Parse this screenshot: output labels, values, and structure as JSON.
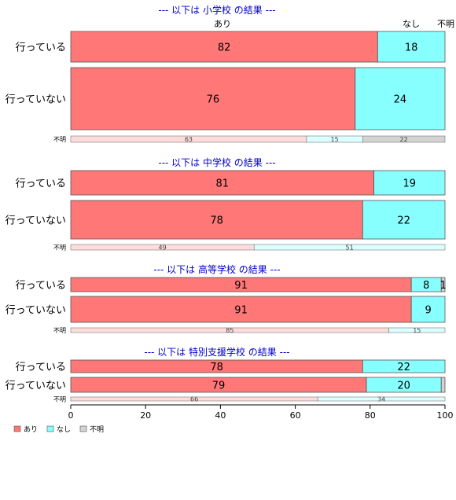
{
  "chart_data": {
    "type": "bar",
    "orientation": "horizontal",
    "stacked": true,
    "xlim": [
      0,
      100
    ],
    "x_ticks": [
      "0",
      "20",
      "40",
      "60",
      "80",
      "100"
    ],
    "grid": false,
    "header_labels": [
      "あり",
      "なし",
      "不明"
    ],
    "legend": {
      "placement": "bottom-left",
      "items": [
        {
          "label": "あり",
          "color": "#FF7777"
        },
        {
          "label": "なし",
          "color": "#88FFFF"
        },
        {
          "label": "不明",
          "color": "#D3D3D3"
        }
      ]
    },
    "colors": {
      "main": [
        "#FF7777",
        "#88FFFF",
        "#D3D3D3"
      ],
      "thin": [
        "#FFDCDC",
        "#DCFFFF",
        "#D3D3D3"
      ],
      "title": "#0000CC"
    },
    "panels": [
      {
        "title": "--- 以下は 小学校 の結果 ---",
        "rows": [
          {
            "label": "行っている",
            "values": [
              82,
              18,
              0
            ],
            "shown": [
              "82",
              "18",
              ""
            ]
          },
          {
            "label": "行っていない",
            "values": [
              76,
              24,
              0
            ],
            "shown": [
              "76",
              "24",
              ""
            ]
          }
        ],
        "unknown_row": {
          "label": "不明",
          "values": [
            63,
            15,
            22
          ],
          "shown": [
            "63",
            "15",
            "22"
          ]
        }
      },
      {
        "title": "--- 以下は 中学校 の結果 ---",
        "rows": [
          {
            "label": "行っている",
            "values": [
              81,
              19,
              0
            ],
            "shown": [
              "81",
              "19",
              ""
            ]
          },
          {
            "label": "行っていない",
            "values": [
              78,
              22,
              0
            ],
            "shown": [
              "78",
              "22",
              ""
            ]
          }
        ],
        "unknown_row": {
          "label": "不明",
          "values": [
            49,
            51,
            0
          ],
          "shown": [
            "49",
            "51",
            ""
          ]
        }
      },
      {
        "title": "--- 以下は 高等学校 の結果 ---",
        "rows": [
          {
            "label": "行っている",
            "values": [
              91,
              8,
              1
            ],
            "shown": [
              "91",
              "8",
              "1"
            ]
          },
          {
            "label": "行っていない",
            "values": [
              91,
              9,
              0
            ],
            "shown": [
              "91",
              "9",
              ""
            ]
          }
        ],
        "unknown_row": {
          "label": "不明",
          "values": [
            85,
            15,
            0
          ],
          "shown": [
            "85",
            "15",
            ""
          ]
        }
      },
      {
        "title": "--- 以下は 特別支援学校 の結果 ---",
        "rows": [
          {
            "label": "行っている",
            "values": [
              78,
              22,
              0
            ],
            "shown": [
              "78",
              "22",
              ""
            ]
          },
          {
            "label": "行っていない",
            "values": [
              79,
              20,
              1
            ],
            "shown": [
              "79",
              "20",
              ""
            ]
          }
        ],
        "unknown_row": {
          "label": "不明",
          "values": [
            66,
            34,
            0
          ],
          "shown": [
            "66",
            "34",
            ""
          ]
        }
      }
    ]
  }
}
